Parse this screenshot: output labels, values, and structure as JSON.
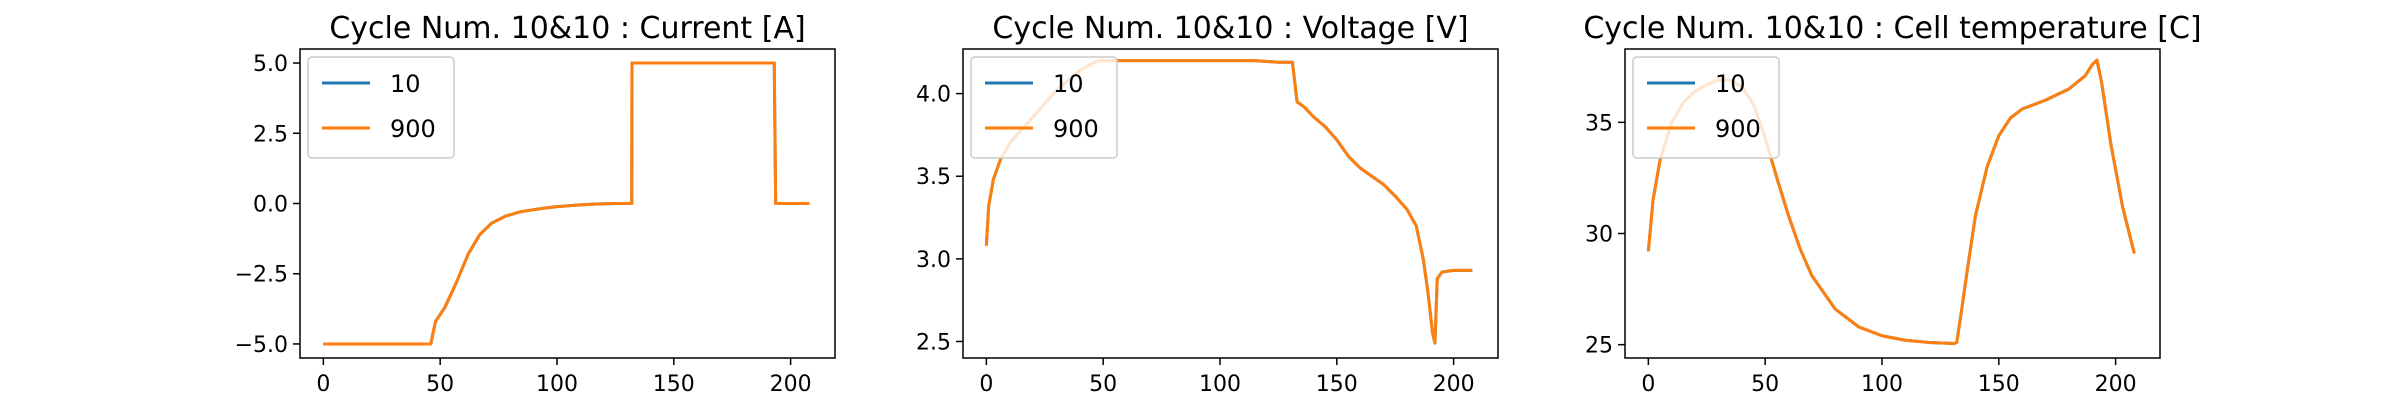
{
  "chart_data": [
    {
      "type": "line",
      "title": "Cycle Num. 10&10 : Current [A]",
      "xlabel": "",
      "ylabel": "",
      "xlim": [
        -10,
        219
      ],
      "ylim": [
        -5.5,
        5.5
      ],
      "xticks": [
        0,
        50,
        100,
        150,
        200
      ],
      "xtick_labels": [
        "0",
        "50",
        "100",
        "150",
        "200"
      ],
      "yticks": [
        -5.0,
        -2.5,
        0.0,
        2.5,
        5.0
      ],
      "ytick_labels": [
        "−5.0",
        "−2.5",
        "0.0",
        "2.5",
        "5.0"
      ],
      "legend": "top-left",
      "series": [
        {
          "name": "10",
          "color": "#1f77b4",
          "x": [
            0,
            46,
            48,
            52,
            57,
            62,
            67,
            72,
            78,
            84,
            90,
            95,
            100,
            105,
            110,
            117,
            125,
            132,
            132.1,
            150,
            170,
            193,
            193.6,
            208
          ],
          "y": [
            -5.0,
            -5.0,
            -4.2,
            -3.7,
            -2.8,
            -1.8,
            -1.1,
            -0.7,
            -0.45,
            -0.3,
            -0.22,
            -0.16,
            -0.11,
            -0.08,
            -0.05,
            -0.02,
            0.0,
            0.0,
            5.0,
            5.0,
            5.0,
            5.0,
            0.0,
            0.0
          ]
        },
        {
          "name": "900",
          "color": "#ff7f0e",
          "x": [
            0,
            46,
            48,
            52,
            57,
            62,
            67,
            72,
            78,
            84,
            90,
            95,
            100,
            105,
            110,
            117,
            125,
            132,
            132.1,
            150,
            170,
            193,
            193.6,
            208
          ],
          "y": [
            -5.0,
            -5.0,
            -4.2,
            -3.7,
            -2.8,
            -1.8,
            -1.1,
            -0.7,
            -0.45,
            -0.3,
            -0.22,
            -0.16,
            -0.11,
            -0.08,
            -0.05,
            -0.02,
            0.0,
            0.0,
            5.0,
            5.0,
            5.0,
            5.0,
            0.0,
            0.0
          ]
        }
      ]
    },
    {
      "type": "line",
      "title": "Cycle Num. 10&10 : Voltage [V]",
      "xlabel": "",
      "ylabel": "",
      "xlim": [
        -10,
        219
      ],
      "ylim": [
        2.4,
        4.27
      ],
      "xticks": [
        0,
        50,
        100,
        150,
        200
      ],
      "xtick_labels": [
        "0",
        "50",
        "100",
        "150",
        "200"
      ],
      "yticks": [
        2.5,
        3.0,
        3.5,
        4.0
      ],
      "ytick_labels": [
        "2.5",
        "3.0",
        "3.5",
        "4.0"
      ],
      "legend": "top-left",
      "series": [
        {
          "name": "10",
          "color": "#1f77b4",
          "x": [
            0,
            1,
            3,
            6,
            10,
            15,
            20,
            25,
            30,
            35,
            40,
            45,
            48,
            60,
            80,
            100,
            115,
            125,
            131,
            133,
            136,
            140,
            145,
            150,
            155,
            160,
            165,
            170,
            175,
            180,
            184,
            187,
            189,
            191,
            192,
            193,
            195,
            200,
            208
          ],
          "y": [
            3.08,
            3.32,
            3.48,
            3.6,
            3.7,
            3.78,
            3.86,
            3.94,
            4.02,
            4.08,
            4.14,
            4.18,
            4.2,
            4.2,
            4.2,
            4.2,
            4.2,
            4.19,
            4.19,
            3.95,
            3.92,
            3.86,
            3.8,
            3.72,
            3.62,
            3.55,
            3.5,
            3.45,
            3.38,
            3.3,
            3.2,
            3.0,
            2.8,
            2.55,
            2.49,
            2.88,
            2.92,
            2.93,
            2.93
          ]
        },
        {
          "name": "900",
          "color": "#ff7f0e",
          "x": [
            0,
            1,
            3,
            6,
            10,
            15,
            20,
            25,
            30,
            35,
            40,
            45,
            48,
            60,
            80,
            100,
            115,
            125,
            131,
            133,
            136,
            140,
            145,
            150,
            155,
            160,
            165,
            170,
            175,
            180,
            184,
            187,
            189,
            191,
            192,
            193,
            195,
            200,
            208
          ],
          "y": [
            3.08,
            3.32,
            3.48,
            3.6,
            3.7,
            3.78,
            3.86,
            3.94,
            4.02,
            4.08,
            4.14,
            4.18,
            4.2,
            4.2,
            4.2,
            4.2,
            4.2,
            4.19,
            4.19,
            3.95,
            3.92,
            3.86,
            3.8,
            3.72,
            3.62,
            3.55,
            3.5,
            3.45,
            3.38,
            3.3,
            3.2,
            3.0,
            2.8,
            2.55,
            2.49,
            2.88,
            2.92,
            2.93,
            2.93
          ]
        }
      ]
    },
    {
      "type": "line",
      "title": "Cycle Num. 10&10 : Cell temperature [C]",
      "xlabel": "",
      "ylabel": "",
      "xlim": [
        -10,
        219
      ],
      "ylim": [
        24.4,
        38.3
      ],
      "xticks": [
        0,
        50,
        100,
        150,
        200
      ],
      "xtick_labels": [
        "0",
        "50",
        "100",
        "150",
        "200"
      ],
      "yticks": [
        25,
        30,
        35
      ],
      "ytick_labels": [
        "25",
        "30",
        "35"
      ],
      "legend": "top-left",
      "series": [
        {
          "name": "10",
          "color": "#1f77b4",
          "x": [
            0,
            2,
            5,
            10,
            15,
            20,
            25,
            30,
            35,
            40,
            45,
            50,
            55,
            60,
            65,
            70,
            80,
            90,
            100,
            110,
            120,
            131,
            132,
            134,
            137,
            140,
            145,
            150,
            155,
            160,
            170,
            180,
            187,
            190,
            192,
            194,
            198,
            203,
            208
          ],
          "y": [
            29.2,
            31.5,
            33.3,
            35.0,
            35.9,
            36.4,
            36.7,
            36.9,
            36.9,
            36.6,
            35.8,
            34.3,
            32.5,
            30.8,
            29.3,
            28.1,
            26.6,
            25.8,
            25.4,
            25.2,
            25.1,
            25.05,
            25.1,
            26.5,
            28.7,
            30.8,
            33.0,
            34.4,
            35.2,
            35.6,
            36.0,
            36.5,
            37.1,
            37.6,
            37.8,
            36.8,
            34.0,
            31.2,
            29.1
          ]
        },
        {
          "name": "900",
          "color": "#ff7f0e",
          "x": [
            0,
            2,
            5,
            10,
            15,
            20,
            25,
            30,
            35,
            40,
            45,
            50,
            55,
            60,
            65,
            70,
            80,
            90,
            100,
            110,
            120,
            131,
            132,
            134,
            137,
            140,
            145,
            150,
            155,
            160,
            170,
            180,
            187,
            190,
            192,
            194,
            198,
            203,
            208
          ],
          "y": [
            29.2,
            31.5,
            33.3,
            35.0,
            35.9,
            36.4,
            36.7,
            36.9,
            36.9,
            36.6,
            35.8,
            34.3,
            32.5,
            30.8,
            29.3,
            28.1,
            26.6,
            25.8,
            25.4,
            25.2,
            25.1,
            25.05,
            25.1,
            26.5,
            28.7,
            30.8,
            33.0,
            34.4,
            35.2,
            35.6,
            36.0,
            36.5,
            37.1,
            37.6,
            37.8,
            36.8,
            34.0,
            31.2,
            29.1
          ]
        }
      ]
    }
  ]
}
